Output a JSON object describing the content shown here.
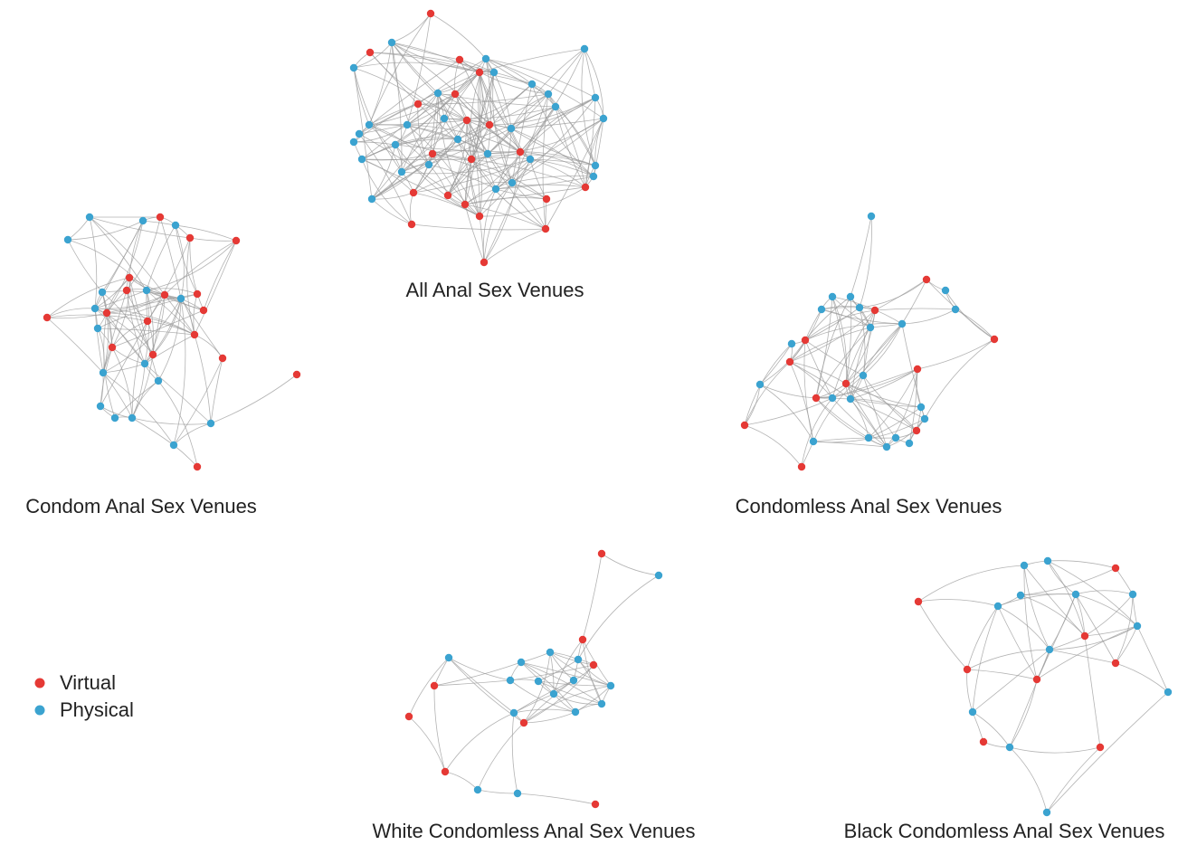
{
  "networks": [
    {
      "title": "All Anal Sex Venues"
    },
    {
      "title": "Condom Anal Sex Venues"
    },
    {
      "title": "Condomless Anal Sex Venues"
    },
    {
      "title": "White Condomless Anal Sex Venues"
    },
    {
      "title": "Black Condomless Anal Sex Venues"
    }
  ],
  "legend": [
    {
      "label": "Virtual",
      "color": "#e53935"
    },
    {
      "label": "Physical",
      "color": "#3ba3d0"
    }
  ]
}
